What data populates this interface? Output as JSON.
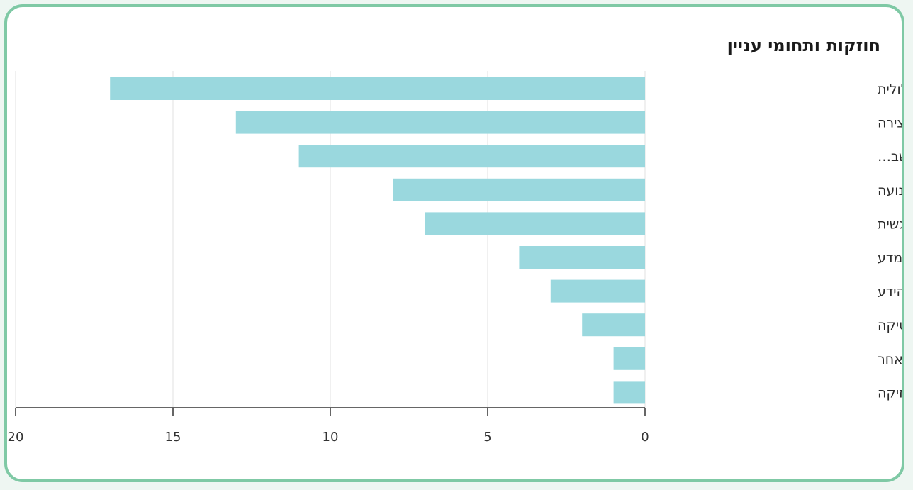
{
  "chart_data": {
    "type": "bar",
    "orientation": "horizontal",
    "title": "חוזקות ותחומי עניין",
    "categories": [
      "יכולת הבעה מילולית",
      "יצירה",
      "מיומנויות בין אישיות (הקשב…",
      "ספורט, ריקוד ותנועה",
      "יכולת הבעה רגשית",
      "חקר ומדע",
      "אוצר הידע",
      "מתמטיקה",
      "אחר",
      "מוזיקה"
    ],
    "values": [
      17,
      13,
      11,
      8,
      7,
      4,
      3,
      2,
      1,
      1
    ],
    "xlim": [
      0,
      20
    ],
    "x_ticks": [
      "0",
      "5",
      "10",
      "15",
      "20"
    ],
    "x_direction": "reversed",
    "grid": true,
    "bar_color": "#9ad8de",
    "axis_color": "#333333",
    "grid_color": "#ececec"
  }
}
